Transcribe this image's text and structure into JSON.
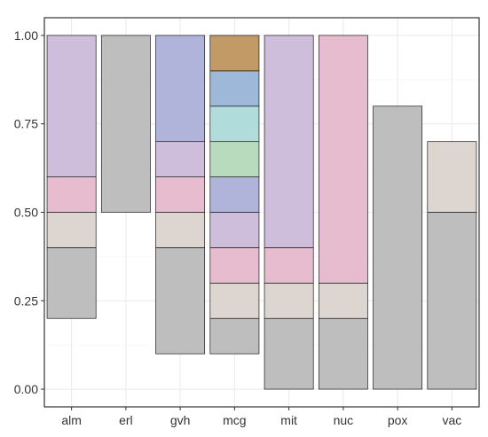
{
  "chart_data": {
    "type": "bar",
    "title": "",
    "xlabel": "",
    "ylabel": "",
    "categories": [
      "alm",
      "erl",
      "gvh",
      "mcg",
      "mit",
      "nuc",
      "pox",
      "vac"
    ],
    "ylim": [
      -0.05,
      1.05
    ],
    "yticks": [
      0.0,
      0.25,
      0.5,
      0.75,
      1.0
    ],
    "ytick_labels": [
      "0.00",
      "0.25",
      "0.50",
      "0.75",
      "1.00"
    ],
    "grid": true,
    "legend": "none",
    "bars": [
      {
        "category": "alm",
        "segments": [
          {
            "from": 0.2,
            "to": 0.4,
            "color": "#bebebe"
          },
          {
            "from": 0.4,
            "to": 0.5,
            "color": "#ddd5d0"
          },
          {
            "from": 0.5,
            "to": 0.6,
            "color": "#e7bccf"
          },
          {
            "from": 0.6,
            "to": 1.0,
            "color": "#cfbddc"
          }
        ]
      },
      {
        "category": "erl",
        "segments": [
          {
            "from": 0.5,
            "to": 1.0,
            "color": "#bebebe"
          }
        ]
      },
      {
        "category": "gvh",
        "segments": [
          {
            "from": 0.1,
            "to": 0.4,
            "color": "#bebebe"
          },
          {
            "from": 0.4,
            "to": 0.5,
            "color": "#ddd5d0"
          },
          {
            "from": 0.5,
            "to": 0.6,
            "color": "#e7bccf"
          },
          {
            "from": 0.6,
            "to": 0.7,
            "color": "#cfbddc"
          },
          {
            "from": 0.7,
            "to": 1.0,
            "color": "#b1b4da"
          }
        ]
      },
      {
        "category": "mcg",
        "segments": [
          {
            "from": 0.1,
            "to": 0.2,
            "color": "#bebebe"
          },
          {
            "from": 0.2,
            "to": 0.3,
            "color": "#ddd5d0"
          },
          {
            "from": 0.3,
            "to": 0.4,
            "color": "#e7bccf"
          },
          {
            "from": 0.4,
            "to": 0.5,
            "color": "#cfbddc"
          },
          {
            "from": 0.5,
            "to": 0.6,
            "color": "#b1b4da"
          },
          {
            "from": 0.6,
            "to": 0.7,
            "color": "#b9dbbd"
          },
          {
            "from": 0.7,
            "to": 0.8,
            "color": "#b1dcdc"
          },
          {
            "from": 0.8,
            "to": 0.9,
            "color": "#9db8d8"
          },
          {
            "from": 0.9,
            "to": 1.0,
            "color": "#c19a66"
          }
        ]
      },
      {
        "category": "mit",
        "segments": [
          {
            "from": 0.0,
            "to": 0.2,
            "color": "#bebebe"
          },
          {
            "from": 0.2,
            "to": 0.3,
            "color": "#ddd5d0"
          },
          {
            "from": 0.3,
            "to": 0.4,
            "color": "#e7bccf"
          },
          {
            "from": 0.4,
            "to": 1.0,
            "color": "#cfbddc"
          }
        ]
      },
      {
        "category": "nuc",
        "segments": [
          {
            "from": 0.0,
            "to": 0.2,
            "color": "#bebebe"
          },
          {
            "from": 0.2,
            "to": 0.3,
            "color": "#ddd5d0"
          },
          {
            "from": 0.3,
            "to": 1.0,
            "color": "#e7bccf"
          }
        ]
      },
      {
        "category": "pox",
        "segments": [
          {
            "from": 0.0,
            "to": 0.8,
            "color": "#bebebe"
          }
        ]
      },
      {
        "category": "vac",
        "segments": [
          {
            "from": 0.0,
            "to": 0.5,
            "color": "#bebebe"
          },
          {
            "from": 0.5,
            "to": 0.7,
            "color": "#ddd5d0"
          }
        ]
      }
    ]
  }
}
